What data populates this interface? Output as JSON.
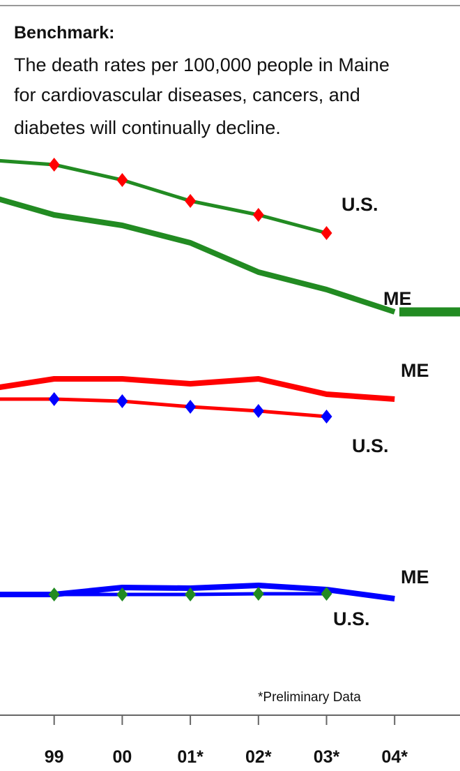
{
  "chart_data": {
    "type": "line",
    "title": "Benchmark:",
    "subtitle": [
      "The death rates per 100,000 people in Maine",
      "for cardiovascular diseases, cancers, and",
      "diabetes will continually decline."
    ],
    "note": "*Preliminary Data",
    "categories": [
      null,
      "99",
      "00",
      "01*",
      "02*",
      "03*",
      "04*"
    ],
    "ylim": [
      0,
      800
    ],
    "series": [
      {
        "name": "U.S.",
        "color": "#228B22",
        "marker_color": "#ff0000",
        "values": [
          796,
          789,
          767,
          737,
          717,
          691,
          null
        ]
      },
      {
        "name": "ME",
        "color": "#228B22",
        "values": [
          745,
          717,
          702,
          677,
          635,
          610,
          578
        ]
      },
      {
        "name": "ME",
        "color": "#ff0000",
        "values": [
          467,
          482,
          482,
          475,
          482,
          460,
          453
        ]
      },
      {
        "name": "U.S.",
        "color": "#ff0000",
        "marker_color": "#0000ff",
        "values": [
          453,
          453,
          450,
          442,
          436,
          428,
          null
        ]
      },
      {
        "name": "ME",
        "color": "#0000ff",
        "values": [
          173,
          173,
          183,
          182,
          186,
          180,
          167
        ]
      },
      {
        "name": "U.S.",
        "color": "#0000ff",
        "marker_color": "#228B22",
        "values": [
          173,
          173,
          173,
          173,
          174,
          174,
          null
        ]
      }
    ]
  }
}
